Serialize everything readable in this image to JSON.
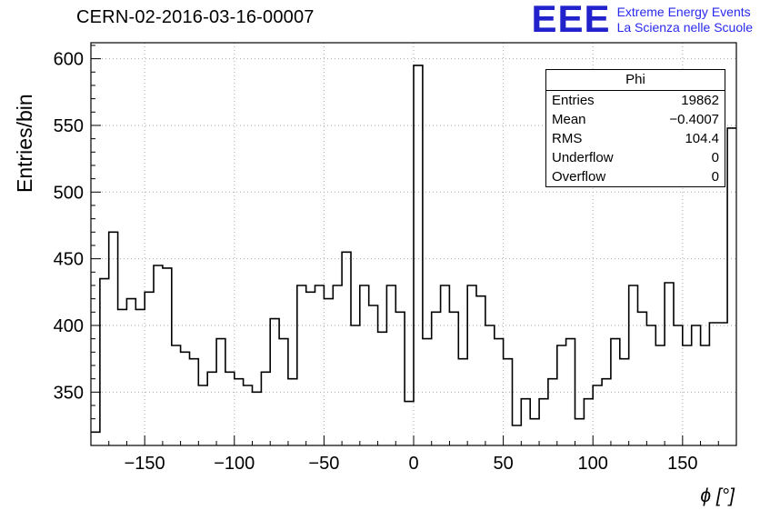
{
  "header": {
    "title": "CERN-02-2016-03-16-00007",
    "logo": {
      "acronym": "EEE",
      "line1": "Extreme Energy Events",
      "line2": "La Scienza nelle Scuole",
      "color": "#2222cc",
      "text_color": "#2a2aee"
    }
  },
  "stats": {
    "title": "Phi",
    "rows": [
      {
        "label": "Entries",
        "value": "19862"
      },
      {
        "label": "Mean",
        "value": "−0.4007"
      },
      {
        "label": "RMS",
        "value": "104.4"
      },
      {
        "label": "Underflow",
        "value": "0"
      },
      {
        "label": "Overflow",
        "value": "0"
      }
    ]
  },
  "chart_data": {
    "type": "bar",
    "subtype": "histogram-step",
    "title": "CERN-02-2016-03-16-00007",
    "xlabel": "ϕ [°]",
    "ylabel": "Entries/bin",
    "xlim": [
      -180,
      180
    ],
    "ylim": [
      310,
      612
    ],
    "bin_width": 5,
    "x_start": -180,
    "values": [
      320,
      435,
      470,
      412,
      420,
      412,
      425,
      445,
      443,
      385,
      380,
      375,
      355,
      365,
      390,
      365,
      360,
      355,
      350,
      365,
      405,
      390,
      360,
      430,
      425,
      430,
      420,
      430,
      455,
      400,
      430,
      415,
      395,
      430,
      410,
      343,
      595,
      390,
      410,
      430,
      410,
      375,
      430,
      422,
      400,
      390,
      375,
      325,
      345,
      330,
      345,
      360,
      385,
      390,
      330,
      345,
      355,
      360,
      390,
      375,
      430,
      410,
      400,
      385,
      432,
      400,
      385,
      400,
      385,
      402,
      402,
      548
    ],
    "x_major_ticks": [
      -150,
      -100,
      -50,
      0,
      50,
      100,
      150
    ],
    "x_minor_step": 10,
    "y_major_ticks": [
      350,
      400,
      450,
      500,
      550,
      600
    ],
    "y_minor_step": 10,
    "grid": true,
    "grid_color": "#aaaaaa",
    "line_color": "#000000",
    "legend_position": "none"
  }
}
